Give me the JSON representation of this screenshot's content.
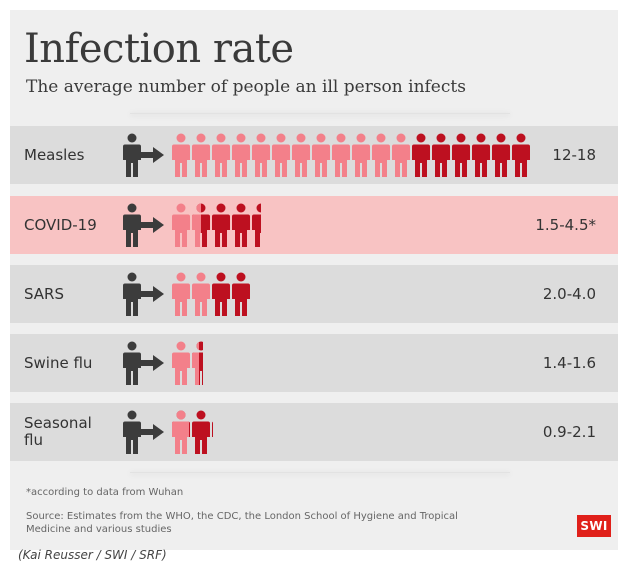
{
  "chart_data": {
    "type": "pictogram",
    "title": "Infection rate",
    "subtitle": "The average number of people an ill person infects",
    "rows": [
      {
        "label": "Measles",
        "low": 12,
        "high": 18,
        "range_text": "12-18",
        "highlight": false
      },
      {
        "label": "COVID-19",
        "low": 1.5,
        "high": 4.5,
        "range_text": "1.5-4.5*",
        "highlight": true
      },
      {
        "label": "SARS",
        "low": 2.0,
        "high": 4.0,
        "range_text": "2.0-4.0",
        "highlight": false
      },
      {
        "label": "Swine flu",
        "low": 1.4,
        "high": 1.6,
        "range_text": "1.4-1.6",
        "highlight": false
      },
      {
        "label": "Seasonal flu",
        "low": 0.9,
        "high": 2.1,
        "range_text": "0.9-2.1",
        "highlight": false
      }
    ],
    "footnote": "*according to data from Wuhan",
    "source": "Source: Estimates from the WHO, the CDC, the London School of Hygiene and Tropical Medicine and various studies"
  },
  "logo_text": "SWI",
  "credit": "(Kai Reusser / SWI / SRF)",
  "colors": {
    "background": "#efefef",
    "row": "#dcdcdc",
    "row_highlight": "#f8c3c3",
    "source_person": "#3c3c3c",
    "low_person": "#f3808a",
    "high_person": "#bd1020",
    "logo": "#e0201a"
  }
}
